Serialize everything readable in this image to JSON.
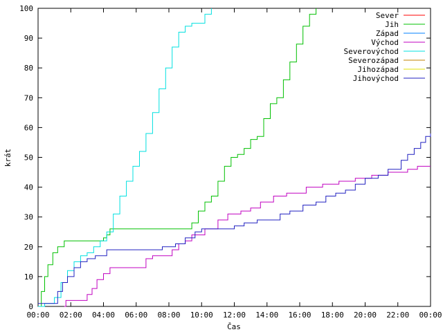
{
  "chart_data": {
    "type": "line",
    "xlabel": "Čas",
    "ylabel": "krát",
    "xlim": [
      0,
      24
    ],
    "ylim": [
      0,
      100
    ],
    "x_ticks": [
      {
        "value": 0,
        "label": "00:00"
      },
      {
        "value": 2,
        "label": "02:00"
      },
      {
        "value": 4,
        "label": "04:00"
      },
      {
        "value": 6,
        "label": "06:00"
      },
      {
        "value": 8,
        "label": "08:00"
      },
      {
        "value": 10,
        "label": "10:00"
      },
      {
        "value": 12,
        "label": "12:00"
      },
      {
        "value": 14,
        "label": "14:00"
      },
      {
        "value": 16,
        "label": "16:00"
      },
      {
        "value": 18,
        "label": "18:00"
      },
      {
        "value": 20,
        "label": "20:00"
      },
      {
        "value": 22,
        "label": "22:00"
      },
      {
        "value": 24,
        "label": "00:00"
      }
    ],
    "y_ticks": [
      0,
      10,
      20,
      30,
      40,
      50,
      60,
      70,
      80,
      90,
      100
    ],
    "grid": false,
    "legend_position": "top-right",
    "series": [
      {
        "name": "Sever",
        "color": "#ff0000",
        "points": []
      },
      {
        "name": "Jih",
        "color": "#00c000",
        "points": [
          [
            0.0,
            0
          ],
          [
            0.2,
            5
          ],
          [
            0.4,
            10
          ],
          [
            0.6,
            14
          ],
          [
            0.9,
            18
          ],
          [
            1.2,
            20
          ],
          [
            1.6,
            22
          ],
          [
            3.8,
            22
          ],
          [
            4.0,
            23
          ],
          [
            4.2,
            24
          ],
          [
            4.4,
            26
          ],
          [
            9.0,
            26
          ],
          [
            9.4,
            28
          ],
          [
            9.8,
            32
          ],
          [
            10.2,
            35
          ],
          [
            10.6,
            37
          ],
          [
            11.0,
            42
          ],
          [
            11.4,
            47
          ],
          [
            11.8,
            50
          ],
          [
            12.2,
            51
          ],
          [
            12.6,
            53
          ],
          [
            13.0,
            56
          ],
          [
            13.4,
            57
          ],
          [
            13.8,
            63
          ],
          [
            14.2,
            68
          ],
          [
            14.6,
            70
          ],
          [
            15.0,
            76
          ],
          [
            15.4,
            82
          ],
          [
            15.8,
            88
          ],
          [
            16.2,
            94
          ],
          [
            16.6,
            98
          ],
          [
            17.0,
            100
          ]
        ]
      },
      {
        "name": "Západ",
        "color": "#0080ff",
        "points": []
      },
      {
        "name": "Východ",
        "color": "#c000c0",
        "points": [
          [
            1.6,
            0
          ],
          [
            1.7,
            2
          ],
          [
            2.8,
            2
          ],
          [
            3.0,
            4
          ],
          [
            3.3,
            6
          ],
          [
            3.6,
            9
          ],
          [
            4.0,
            11
          ],
          [
            4.4,
            13
          ],
          [
            6.2,
            13
          ],
          [
            6.6,
            16
          ],
          [
            7.0,
            17
          ],
          [
            8.2,
            19
          ],
          [
            8.6,
            21
          ],
          [
            9.0,
            22
          ],
          [
            9.4,
            24
          ],
          [
            10.2,
            26
          ],
          [
            11.0,
            29
          ],
          [
            11.6,
            31
          ],
          [
            12.4,
            32
          ],
          [
            13.0,
            33
          ],
          [
            13.6,
            35
          ],
          [
            14.4,
            37
          ],
          [
            15.2,
            38
          ],
          [
            16.4,
            40
          ],
          [
            17.4,
            41
          ],
          [
            18.4,
            42
          ],
          [
            19.4,
            43
          ],
          [
            20.4,
            44
          ],
          [
            21.4,
            45
          ],
          [
            22.6,
            46
          ],
          [
            23.2,
            47
          ],
          [
            24.0,
            47
          ]
        ]
      },
      {
        "name": "Severovýchod",
        "color": "#00e0e0",
        "points": [
          [
            0.0,
            0
          ],
          [
            0.4,
            1
          ],
          [
            1.0,
            3
          ],
          [
            1.4,
            8
          ],
          [
            1.8,
            12
          ],
          [
            2.2,
            15
          ],
          [
            2.6,
            17
          ],
          [
            3.0,
            18
          ],
          [
            3.4,
            20
          ],
          [
            3.8,
            22
          ],
          [
            4.2,
            25
          ],
          [
            4.6,
            31
          ],
          [
            5.0,
            37
          ],
          [
            5.4,
            42
          ],
          [
            5.8,
            47
          ],
          [
            6.2,
            52
          ],
          [
            6.6,
            58
          ],
          [
            7.0,
            65
          ],
          [
            7.4,
            73
          ],
          [
            7.8,
            80
          ],
          [
            8.2,
            87
          ],
          [
            8.6,
            92
          ],
          [
            9.0,
            94
          ],
          [
            9.4,
            95
          ],
          [
            9.8,
            95
          ],
          [
            10.2,
            98
          ],
          [
            10.6,
            100
          ]
        ]
      },
      {
        "name": "Severozápad",
        "color": "#c08000",
        "points": []
      },
      {
        "name": "Jihozápad",
        "color": "#e0e000",
        "points": []
      },
      {
        "name": "Jihovýchod",
        "color": "#2020c0",
        "points": [
          [
            0.0,
            1
          ],
          [
            1.0,
            1
          ],
          [
            1.2,
            5
          ],
          [
            1.5,
            8
          ],
          [
            1.8,
            10
          ],
          [
            2.2,
            13
          ],
          [
            2.6,
            15
          ],
          [
            3.0,
            16
          ],
          [
            3.5,
            17
          ],
          [
            4.2,
            19
          ],
          [
            6.6,
            19
          ],
          [
            7.6,
            20
          ],
          [
            8.4,
            21
          ],
          [
            9.0,
            23
          ],
          [
            9.6,
            25
          ],
          [
            10.0,
            26
          ],
          [
            12.0,
            27
          ],
          [
            12.6,
            28
          ],
          [
            13.4,
            29
          ],
          [
            14.8,
            31
          ],
          [
            15.4,
            32
          ],
          [
            16.2,
            34
          ],
          [
            17.0,
            35
          ],
          [
            17.6,
            37
          ],
          [
            18.2,
            38
          ],
          [
            18.8,
            39
          ],
          [
            19.4,
            41
          ],
          [
            20.0,
            43
          ],
          [
            20.8,
            44
          ],
          [
            21.4,
            46
          ],
          [
            22.2,
            49
          ],
          [
            22.6,
            51
          ],
          [
            23.0,
            53
          ],
          [
            23.4,
            55
          ],
          [
            23.7,
            57
          ],
          [
            24.0,
            58
          ]
        ]
      }
    ]
  }
}
